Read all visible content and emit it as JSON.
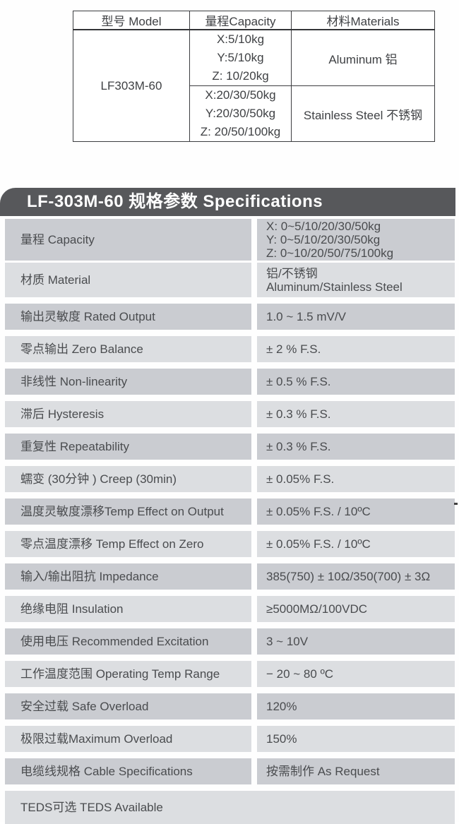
{
  "model_table": {
    "headers": [
      "型号 Model",
      "量程Capacity",
      "材料Materials"
    ],
    "model": "LF303M-60",
    "groups": [
      {
        "capacities": [
          "X:5/10kg",
          "Y:5/10kg",
          "Z: 10/20kg"
        ],
        "material": "Aluminum 铝"
      },
      {
        "capacities": [
          "X:20/30/50kg",
          "Y:20/30/50kg",
          "Z: 20/50/100kg"
        ],
        "material": "Stainless Steel 不锈钢"
      }
    ]
  },
  "spec_table": {
    "title": "LF-303M-60 规格参数 Specifications",
    "rows": [
      {
        "label": "量程 Capacity",
        "value_lines": [
          "X: 0~5/10/20/30/50kg",
          "Y: 0~5/10/20/30/50kg",
          "Z: 0~10/20/50/75/100kg"
        ]
      },
      {
        "label": "材质 Material",
        "value_lines": [
          "铝/不锈钢",
          "Aluminum/Stainless Steel"
        ]
      },
      {
        "label": "输出灵敏度 Rated Output",
        "value": "1.0 ~ 1.5 mV/V"
      },
      {
        "label": "零点输出  Zero Balance",
        "value": "± 2 % F.S."
      },
      {
        "label": "非线性 Non-linearity",
        "value": "± 0.5 % F.S."
      },
      {
        "label": "滞后 Hysteresis",
        "value": "± 0.3 % F.S."
      },
      {
        "label": "重复性 Repeatability",
        "value": "± 0.3 % F.S."
      },
      {
        "label": "蠕变 (30分钟 ) Creep (30min)",
        "value": "± 0.05% F.S."
      },
      {
        "label": "温度灵敏度漂移Temp Effect on Output",
        "value": "± 0.05% F.S. / 10ºC"
      },
      {
        "label": "零点温度漂移 Temp Effect on Zero",
        "value": "± 0.05% F.S. / 10ºC"
      },
      {
        "label": "输入/输出阻抗 Impedance",
        "value": "385(750) ± 10Ω/350(700) ± 3Ω"
      },
      {
        "label": "绝缘电阻  Insulation",
        "value": "≥5000MΩ/100VDC"
      },
      {
        "label": "使用电压 Recommended Excitation",
        "value": "3 ~ 10V"
      },
      {
        "label": "工作温度范围 Operating Temp  Range",
        "value": "− 20 ~ 80 ºC"
      },
      {
        "label": "安全过载 Safe Overload",
        "value": "120%"
      },
      {
        "label": "极限过载Maximum Overload",
        "value": "150%"
      },
      {
        "label": "电缆线规格 Cable Specifications",
        "value": "按需制作 As Request"
      },
      {
        "label": "TEDS可选 TEDS Available",
        "value": ""
      }
    ]
  },
  "colors": {
    "header_bar": "#57585b",
    "row_dark": "#caccd1",
    "row_light": "#dcdee1",
    "text": "#4a4c4f",
    "table_border": "#3c3d40"
  }
}
